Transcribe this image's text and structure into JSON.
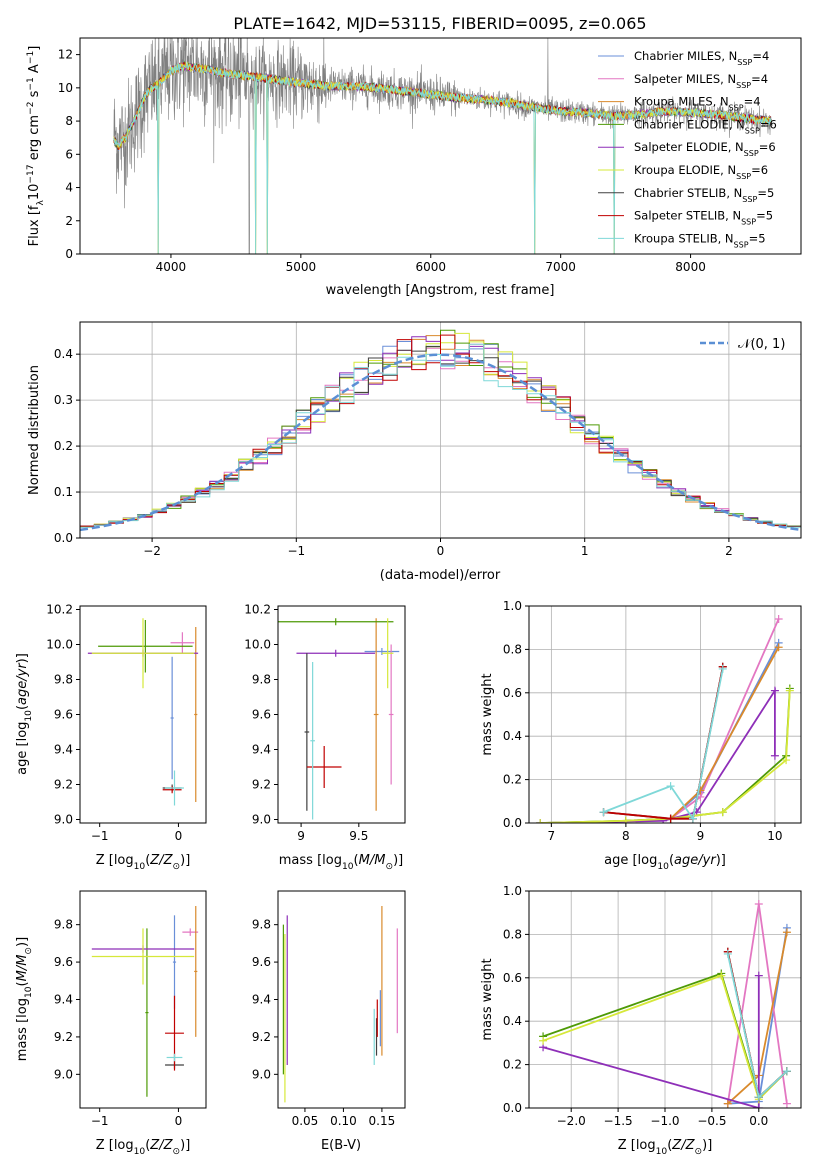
{
  "figure": {
    "title": "PLATE=1642, MJD=53115, FIBERID=0095, z=0.065"
  },
  "colors": {
    "series": [
      "#6a8fd8",
      "#e377c2",
      "#d98a2c",
      "#4e9a06",
      "#8e2fb8",
      "#d6e83a",
      "#404040",
      "#c00000",
      "#7fd8d8"
    ],
    "data": "#808080",
    "gauss": "#5b8fd4",
    "grid": "#b0b0b0"
  },
  "legend": {
    "items": [
      {
        "text": "Chabrier MILES, N",
        "sub": "SSP",
        "tail": "=4"
      },
      {
        "text": "Salpeter MILES, N",
        "sub": "SSP",
        "tail": "=4"
      },
      {
        "text": "Kroupa MILES, N",
        "sub": "SSP",
        "tail": "=4"
      },
      {
        "text": "Chabrier ELODIE, N",
        "sub": "SSP",
        "tail": "=6"
      },
      {
        "text": "Salpeter ELODIE, N",
        "sub": "SSP",
        "tail": "=6"
      },
      {
        "text": "Kroupa ELODIE, N",
        "sub": "SSP",
        "tail": "=6"
      },
      {
        "text": "Chabrier STELIB, N",
        "sub": "SSP",
        "tail": "=5"
      },
      {
        "text": "Salpeter STELIB, N",
        "sub": "SSP",
        "tail": "=5"
      },
      {
        "text": "Kroupa STELIB, N",
        "sub": "SSP",
        "tail": "=5"
      }
    ],
    "gauss_label": "𝒩(0, 1)"
  },
  "chart_data": [
    {
      "id": "spectrum",
      "type": "line",
      "xlabel": "wavelength [Angstrom, rest frame]",
      "ylabel": "Flux [f",
      "ylabel_full": "Flux [fλ10−17 erg cm−2 s−1 A−1]",
      "xlim": [
        3300,
        8850
      ],
      "ylim": [
        0,
        13
      ],
      "xticks": [
        4000,
        5000,
        6000,
        7000,
        8000
      ],
      "yticks": [
        0,
        2,
        4,
        6,
        8,
        10,
        12
      ],
      "continuum": {
        "x": [
          3560,
          3600,
          3650,
          3700,
          3750,
          3800,
          3850,
          3900,
          3950,
          4000,
          4050,
          4100,
          4200,
          4300,
          4400,
          4500,
          4600,
          4700,
          4800,
          5000,
          5200,
          5400,
          5600,
          5800,
          6000,
          6200,
          6400,
          6600,
          6800,
          7000,
          7200,
          7400,
          7600,
          7800,
          8000,
          8200,
          8400,
          8600
        ],
        "y": [
          7.2,
          6.7,
          7.0,
          7.8,
          8.6,
          9.5,
          10.0,
          10.2,
          10.6,
          11.0,
          11.2,
          11.3,
          11.2,
          11.1,
          10.9,
          10.8,
          10.7,
          10.6,
          10.5,
          10.3,
          10.1,
          10.1,
          10.0,
          9.8,
          9.6,
          9.4,
          9.3,
          9.1,
          8.8,
          8.6,
          8.5,
          8.3,
          8.4,
          8.6,
          8.5,
          8.4,
          8.2,
          8.0
        ]
      },
      "data_range": [
        3560,
        8630
      ],
      "model_range": [
        3560,
        8620
      ],
      "dips": [
        {
          "x": 3900,
          "y": 0.0
        },
        {
          "x": 4650,
          "y": 0.0
        },
        {
          "x": 4740,
          "y": 0.0
        },
        {
          "x": 6800,
          "y": 0.0
        },
        {
          "x": 7410,
          "y": 0.0
        }
      ]
    },
    {
      "id": "residuals",
      "type": "histogram",
      "xlabel": "(data-model)/error",
      "ylabel": "Normed distribution",
      "xlim": [
        -2.5,
        2.5
      ],
      "ylim": [
        0,
        0.47
      ],
      "xticks": [
        -2,
        -1,
        0,
        1,
        2
      ],
      "yticks": [
        0.0,
        0.1,
        0.2,
        0.3,
        0.4
      ],
      "bin_width": 0.1,
      "series_note": "nine step-histograms following a unit Gaussian with scatter"
    },
    {
      "id": "age-vs-Z",
      "type": "scatter",
      "xlabel": "Z [log",
      "xlabel_full": "Z [log10(Z/Z⊙)]",
      "ylabel_full": "age  [log10(age/yr)]",
      "xlim": [
        -1.25,
        0.35
      ],
      "ylim": [
        8.98,
        10.22
      ],
      "xticks": [
        -1,
        0
      ],
      "yticks": [
        9.0,
        9.2,
        9.4,
        9.6,
        9.8,
        10.0,
        10.2
      ],
      "points": [
        {
          "s": 0,
          "x": -0.08,
          "y": 9.58,
          "xe": 0.02,
          "ye": 0.35
        },
        {
          "s": 1,
          "x": 0.05,
          "y": 10.01,
          "xe": 0.15,
          "ye": 0.06
        },
        {
          "s": 2,
          "x": 0.22,
          "y": 9.6,
          "xe": 0.02,
          "ye": 0.5
        },
        {
          "s": 3,
          "x": -0.42,
          "y": 9.99,
          "xe": 0.6,
          "ye": 0.15
        },
        {
          "s": 4,
          "x": -0.45,
          "y": 9.95,
          "xe": 0.7,
          "ye": 0.02
        },
        {
          "s": 5,
          "x": -0.45,
          "y": 9.95,
          "xe": 0.65,
          "ye": 0.2
        },
        {
          "s": 6,
          "x": -0.08,
          "y": 9.18,
          "xe": 0.12,
          "ye": 0.02
        },
        {
          "s": 7,
          "x": -0.08,
          "y": 9.17,
          "xe": 0.12,
          "ye": 0.02
        },
        {
          "s": 8,
          "x": -0.05,
          "y": 9.18,
          "xe": 0.12,
          "ye": 0.1
        }
      ]
    },
    {
      "id": "age-vs-mass",
      "type": "scatter",
      "xlabel_full": "mass [log10(M/M⊙)]",
      "xlim": [
        8.8,
        9.9
      ],
      "ylim": [
        8.98,
        10.22
      ],
      "xticks": [
        9.0,
        9.5
      ],
      "yticks": [
        9.0,
        9.2,
        9.4,
        9.6,
        9.8,
        10.0,
        10.2
      ],
      "points": [
        {
          "s": 0,
          "x": 9.7,
          "y": 9.96,
          "xe": 0.15,
          "ye": 0.02
        },
        {
          "s": 1,
          "x": 9.78,
          "y": 9.6,
          "xe": 0.02,
          "ye": 0.4
        },
        {
          "s": 2,
          "x": 9.65,
          "y": 9.6,
          "xe": 0.02,
          "ye": 0.55
        },
        {
          "s": 3,
          "x": 9.3,
          "y": 10.13,
          "xe": 0.5,
          "ye": 0.02
        },
        {
          "s": 4,
          "x": 9.3,
          "y": 9.95,
          "xe": 0.34,
          "ye": 0.02
        },
        {
          "s": 5,
          "x": 9.75,
          "y": 9.95,
          "xe": 0.05,
          "ye": 0.2
        },
        {
          "s": 6,
          "x": 9.05,
          "y": 9.5,
          "xe": 0.02,
          "ye": 0.45
        },
        {
          "s": 7,
          "x": 9.2,
          "y": 9.3,
          "xe": 0.15,
          "ye": 0.12
        },
        {
          "s": 8,
          "x": 9.1,
          "y": 9.45,
          "xe": 0.02,
          "ye": 0.45
        }
      ]
    },
    {
      "id": "mass-weight-vs-age",
      "type": "line",
      "xlabel_full": "age  [log10(age/yr)]",
      "ylabel": "mass weight",
      "xlim": [
        6.7,
        10.35
      ],
      "ylim": [
        0,
        1
      ],
      "xticks": [
        7,
        8,
        9,
        10
      ],
      "yticks": [
        0.0,
        0.2,
        0.4,
        0.6,
        0.8,
        1.0
      ],
      "series": [
        {
          "s": 0,
          "x": [
            8.0,
            8.6,
            9.0,
            10.05
          ],
          "y": [
            0.01,
            0.02,
            0.14,
            0.83
          ]
        },
        {
          "s": 1,
          "x": [
            8.0,
            8.6,
            9.0,
            10.05
          ],
          "y": [
            0.01,
            0.02,
            0.12,
            0.94
          ]
        },
        {
          "s": 2,
          "x": [
            8.0,
            8.6,
            9.0,
            10.05
          ],
          "y": [
            0.01,
            0.02,
            0.15,
            0.81
          ]
        },
        {
          "s": 3,
          "x": [
            6.85,
            8.0,
            8.6,
            9.3,
            10.15,
            10.2
          ],
          "y": [
            0.0,
            0.01,
            0.02,
            0.05,
            0.31,
            0.62
          ]
        },
        {
          "s": 4,
          "x": [
            6.85,
            8.5,
            8.95,
            10.0,
            10.0
          ],
          "y": [
            0.0,
            0.01,
            0.05,
            0.61,
            0.31
          ]
        },
        {
          "s": 5,
          "x": [
            6.85,
            8.0,
            8.6,
            9.3,
            10.15,
            10.2
          ],
          "y": [
            0.0,
            0.01,
            0.02,
            0.05,
            0.29,
            0.61
          ]
        },
        {
          "s": 6,
          "x": [
            7.7,
            8.6,
            8.9,
            9.3
          ],
          "y": [
            0.05,
            0.02,
            0.02,
            0.72
          ]
        },
        {
          "s": 7,
          "x": [
            7.7,
            8.6,
            8.9,
            9.3
          ],
          "y": [
            0.05,
            0.02,
            0.02,
            0.72
          ]
        },
        {
          "s": 8,
          "x": [
            7.7,
            8.6,
            8.9,
            9.3
          ],
          "y": [
            0.05,
            0.17,
            0.02,
            0.71
          ]
        }
      ]
    },
    {
      "id": "mass-vs-Z",
      "type": "scatter",
      "xlabel_full": "Z [log10(Z/Z⊙)]",
      "ylabel_full": "mass [log10(M/M⊙)]",
      "xlim": [
        -1.25,
        0.35
      ],
      "ylim": [
        8.82,
        9.98
      ],
      "xticks": [
        -1,
        0
      ],
      "yticks": [
        9.0,
        9.2,
        9.4,
        9.6,
        9.8
      ],
      "points": [
        {
          "s": 0,
          "x": -0.05,
          "y": 9.6,
          "xe": 0.02,
          "ye": 0.25
        },
        {
          "s": 1,
          "x": 0.15,
          "y": 9.76,
          "xe": 0.1,
          "ye": 0.02
        },
        {
          "s": 2,
          "x": 0.22,
          "y": 9.55,
          "xe": 0.02,
          "ye": 0.35
        },
        {
          "s": 3,
          "x": -0.4,
          "y": 9.33,
          "xe": 0.02,
          "ye": 0.45
        },
        {
          "s": 4,
          "x": -0.45,
          "y": 9.67,
          "xe": 0.65,
          "ye": 0.02
        },
        {
          "s": 5,
          "x": -0.45,
          "y": 9.63,
          "xe": 0.65,
          "ye": 0.15
        },
        {
          "s": 6,
          "x": -0.05,
          "y": 9.05,
          "xe": 0.12,
          "ye": 0.02
        },
        {
          "s": 7,
          "x": -0.05,
          "y": 9.22,
          "xe": 0.12,
          "ye": 0.2
        },
        {
          "s": 8,
          "x": -0.05,
          "y": 9.09,
          "xe": 0.1,
          "ye": 0.02
        }
      ]
    },
    {
      "id": "mass-vs-ebv",
      "type": "scatter",
      "xlabel": "E(B-V)",
      "xlim": [
        0.015,
        0.18
      ],
      "ylim": [
        8.82,
        9.98
      ],
      "xticks": [
        0.05,
        0.1,
        0.15
      ],
      "xtick_labels": [
        "0.05",
        "0.10",
        "0.15"
      ],
      "yticks": [
        9.0,
        9.2,
        9.4,
        9.6,
        9.8
      ],
      "points": [
        {
          "s": 0,
          "x": 0.148,
          "y": 9.3,
          "xe": 0.0,
          "ye": 0.15
        },
        {
          "s": 1,
          "x": 0.17,
          "y": 9.5,
          "xe": 0.0,
          "ye": 0.28
        },
        {
          "s": 2,
          "x": 0.15,
          "y": 9.5,
          "xe": 0.0,
          "ye": 0.4
        },
        {
          "s": 3,
          "x": 0.022,
          "y": 9.4,
          "xe": 0.0,
          "ye": 0.4
        },
        {
          "s": 4,
          "x": 0.027,
          "y": 9.45,
          "xe": 0.0,
          "ye": 0.4
        },
        {
          "s": 5,
          "x": 0.024,
          "y": 9.3,
          "xe": 0.0,
          "ye": 0.45
        },
        {
          "s": 6,
          "x": 0.143,
          "y": 9.2,
          "xe": 0.0,
          "ye": 0.1
        },
        {
          "s": 7,
          "x": 0.144,
          "y": 9.3,
          "xe": 0.0,
          "ye": 0.1
        },
        {
          "s": 8,
          "x": 0.14,
          "y": 9.2,
          "xe": 0.0,
          "ye": 0.15
        }
      ]
    },
    {
      "id": "mass-weight-vs-Z",
      "type": "line",
      "xlabel_full": "Z [log10(Z/Z⊙)]",
      "ylabel": "mass weight",
      "xlim": [
        -2.45,
        0.45
      ],
      "ylim": [
        0,
        1
      ],
      "xticks": [
        -2.0,
        -1.5,
        -1.0,
        -0.5,
        0.0
      ],
      "xtick_labels": [
        "−2.0",
        "−1.5",
        "−1.0",
        "−0.5",
        "0.0"
      ],
      "yticks": [
        0.0,
        0.2,
        0.4,
        0.6,
        0.8,
        1.0
      ],
      "series": [
        {
          "s": 0,
          "x": [
            -0.33,
            0.0,
            0.3
          ],
          "y": [
            0.02,
            0.03,
            0.83
          ]
        },
        {
          "s": 1,
          "x": [
            -0.33,
            0.0,
            0.3
          ],
          "y": [
            0.02,
            0.94,
            0.02
          ]
        },
        {
          "s": 2,
          "x": [
            -0.33,
            0.0,
            0.3
          ],
          "y": [
            0.02,
            0.15,
            0.81
          ]
        },
        {
          "s": 3,
          "x": [
            -2.3,
            -0.4,
            0.0,
            0.3
          ],
          "y": [
            0.33,
            0.62,
            0.05,
            0.17
          ]
        },
        {
          "s": 4,
          "x": [
            -2.3,
            0.0,
            0.0
          ],
          "y": [
            0.28,
            0.0,
            0.61
          ]
        },
        {
          "s": 5,
          "x": [
            -2.3,
            -0.4,
            0.0,
            0.3
          ],
          "y": [
            0.31,
            0.61,
            0.04,
            0.17
          ]
        },
        {
          "s": 6,
          "x": [
            -0.33,
            0.0,
            0.3
          ],
          "y": [
            0.72,
            0.05,
            0.17
          ]
        },
        {
          "s": 7,
          "x": [
            -0.33,
            0.0,
            0.3
          ],
          "y": [
            0.72,
            0.05,
            0.17
          ]
        },
        {
          "s": 8,
          "x": [
            -0.33,
            0.0,
            0.3
          ],
          "y": [
            0.71,
            0.05,
            0.17
          ]
        }
      ]
    }
  ]
}
